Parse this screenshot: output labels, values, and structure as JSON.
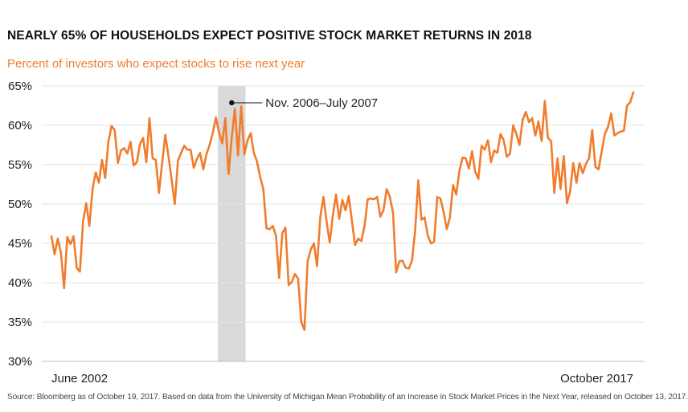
{
  "chart_data": {
    "type": "line",
    "title": "NEARLY 65% OF HOUSEHOLDS EXPECT POSITIVE STOCK MARKET RETURNS IN 2018",
    "subtitle": "Percent of investors who expect stocks to rise next year",
    "ylim": [
      30,
      65
    ],
    "yticks": [
      30,
      35,
      40,
      45,
      50,
      55,
      60,
      65
    ],
    "ytick_suffix": "%",
    "x_range": [
      "2002-06",
      "2017-10"
    ],
    "x_tick_labels": [
      {
        "x": "2002-06",
        "label": "June 2002"
      },
      {
        "x": "2017-10",
        "label": "October 2017"
      }
    ],
    "grid": "horizontal",
    "line_color": "#f07c2c",
    "highlight_color": "#d9d9d9",
    "highlight": {
      "start": "2006-11",
      "end": "2007-07",
      "label": "Nov. 2006–July 2007"
    },
    "series": [
      {
        "values": [
          [
            "2002-06",
            45.9
          ],
          [
            "2002-07",
            43.6
          ],
          [
            "2002-08",
            45.6
          ],
          [
            "2002-09",
            43.8
          ],
          [
            "2002-10",
            39.3
          ],
          [
            "2002-11",
            45.8
          ],
          [
            "2002-12",
            44.9
          ],
          [
            "2003-01",
            45.9
          ],
          [
            "2003-02",
            41.9
          ],
          [
            "2003-03",
            41.4
          ],
          [
            "2003-04",
            47.8
          ],
          [
            "2003-05",
            50.1
          ],
          [
            "2003-06",
            47.2
          ],
          [
            "2003-07",
            51.9
          ],
          [
            "2003-08",
            54.0
          ],
          [
            "2003-09",
            52.7
          ],
          [
            "2003-10",
            55.6
          ],
          [
            "2003-11",
            53.3
          ],
          [
            "2003-12",
            57.9
          ],
          [
            "2004-01",
            59.9
          ],
          [
            "2004-02",
            59.4
          ],
          [
            "2004-03",
            55.2
          ],
          [
            "2004-04",
            56.8
          ],
          [
            "2004-05",
            57.1
          ],
          [
            "2004-06",
            56.4
          ],
          [
            "2004-07",
            57.9
          ],
          [
            "2004-08",
            54.9
          ],
          [
            "2004-09",
            55.3
          ],
          [
            "2004-10",
            57.6
          ],
          [
            "2004-11",
            58.4
          ],
          [
            "2004-12",
            55.3
          ],
          [
            "2005-01",
            60.9
          ],
          [
            "2005-02",
            55.8
          ],
          [
            "2005-03",
            55.6
          ],
          [
            "2005-04",
            51.4
          ],
          [
            "2005-05",
            55.2
          ],
          [
            "2005-06",
            58.8
          ],
          [
            "2005-07",
            56.1
          ],
          [
            "2005-08",
            53.1
          ],
          [
            "2005-09",
            50.0
          ],
          [
            "2005-10",
            55.5
          ],
          [
            "2005-11",
            56.5
          ],
          [
            "2005-12",
            57.4
          ],
          [
            "2006-01",
            56.9
          ],
          [
            "2006-02",
            56.9
          ],
          [
            "2006-03",
            54.6
          ],
          [
            "2006-04",
            55.7
          ],
          [
            "2006-05",
            56.5
          ],
          [
            "2006-06",
            54.4
          ],
          [
            "2006-07",
            56.3
          ],
          [
            "2006-08",
            57.5
          ],
          [
            "2006-09",
            59.0
          ],
          [
            "2006-10",
            61.0
          ],
          [
            "2006-11",
            59.1
          ],
          [
            "2006-12",
            57.7
          ],
          [
            "2007-01",
            60.9
          ],
          [
            "2007-02",
            53.8
          ],
          [
            "2007-03",
            58.4
          ],
          [
            "2007-04",
            62.1
          ],
          [
            "2007-05",
            56.2
          ],
          [
            "2007-06",
            62.4
          ],
          [
            "2007-07",
            56.3
          ],
          [
            "2007-08",
            58.1
          ],
          [
            "2007-09",
            59.0
          ],
          [
            "2007-10",
            56.5
          ],
          [
            "2007-11",
            55.4
          ],
          [
            "2007-12",
            53.4
          ],
          [
            "2008-01",
            51.9
          ],
          [
            "2008-02",
            46.9
          ],
          [
            "2008-03",
            46.8
          ],
          [
            "2008-04",
            47.2
          ],
          [
            "2008-05",
            46.0
          ],
          [
            "2008-06",
            40.6
          ],
          [
            "2008-07",
            46.3
          ],
          [
            "2008-08",
            47.0
          ],
          [
            "2008-09",
            39.7
          ],
          [
            "2008-10",
            40.1
          ],
          [
            "2008-11",
            41.1
          ],
          [
            "2008-12",
            40.5
          ],
          [
            "2009-01",
            35.0
          ],
          [
            "2009-02",
            34.0
          ],
          [
            "2009-03",
            42.7
          ],
          [
            "2009-04",
            44.2
          ],
          [
            "2009-05",
            45.0
          ],
          [
            "2009-06",
            42.1
          ],
          [
            "2009-07",
            48.3
          ],
          [
            "2009-08",
            50.9
          ],
          [
            "2009-09",
            47.8
          ],
          [
            "2009-10",
            45.1
          ],
          [
            "2009-11",
            48.6
          ],
          [
            "2009-12",
            51.2
          ],
          [
            "2010-01",
            48.1
          ],
          [
            "2010-02",
            50.5
          ],
          [
            "2010-03",
            49.2
          ],
          [
            "2010-04",
            51.0
          ],
          [
            "2010-05",
            47.9
          ],
          [
            "2010-06",
            44.8
          ],
          [
            "2010-07",
            45.6
          ],
          [
            "2010-08",
            45.3
          ],
          [
            "2010-09",
            47.2
          ],
          [
            "2010-10",
            50.6
          ],
          [
            "2010-11",
            50.7
          ],
          [
            "2010-12",
            50.6
          ],
          [
            "2011-01",
            50.9
          ],
          [
            "2011-02",
            48.4
          ],
          [
            "2011-03",
            49.2
          ],
          [
            "2011-04",
            51.9
          ],
          [
            "2011-05",
            50.9
          ],
          [
            "2011-06",
            48.9
          ],
          [
            "2011-07",
            41.3
          ],
          [
            "2011-08",
            42.7
          ],
          [
            "2011-09",
            42.8
          ],
          [
            "2011-10",
            41.9
          ],
          [
            "2011-11",
            41.8
          ],
          [
            "2011-12",
            42.8
          ],
          [
            "2012-01",
            46.6
          ],
          [
            "2012-02",
            53.0
          ],
          [
            "2012-03",
            48.0
          ],
          [
            "2012-04",
            48.3
          ],
          [
            "2012-05",
            46.0
          ],
          [
            "2012-06",
            45.0
          ],
          [
            "2012-07",
            45.2
          ],
          [
            "2012-08",
            50.9
          ],
          [
            "2012-09",
            50.7
          ],
          [
            "2012-10",
            49.0
          ],
          [
            "2012-11",
            46.8
          ],
          [
            "2012-12",
            48.3
          ],
          [
            "2013-01",
            52.4
          ],
          [
            "2013-02",
            51.2
          ],
          [
            "2013-03",
            54.2
          ],
          [
            "2013-04",
            55.9
          ],
          [
            "2013-05",
            55.8
          ],
          [
            "2013-06",
            54.5
          ],
          [
            "2013-07",
            56.7
          ],
          [
            "2013-08",
            54.1
          ],
          [
            "2013-09",
            53.2
          ],
          [
            "2013-10",
            57.4
          ],
          [
            "2013-11",
            56.9
          ],
          [
            "2013-12",
            58.1
          ],
          [
            "2014-01",
            55.3
          ],
          [
            "2014-02",
            56.8
          ],
          [
            "2014-03",
            56.5
          ],
          [
            "2014-04",
            58.9
          ],
          [
            "2014-05",
            58.1
          ],
          [
            "2014-06",
            56.0
          ],
          [
            "2014-07",
            56.4
          ],
          [
            "2014-08",
            60.0
          ],
          [
            "2014-09",
            58.9
          ],
          [
            "2014-10",
            57.5
          ],
          [
            "2014-11",
            60.7
          ],
          [
            "2014-12",
            61.7
          ],
          [
            "2015-01",
            60.4
          ],
          [
            "2015-02",
            60.9
          ],
          [
            "2015-03",
            58.7
          ],
          [
            "2015-04",
            60.5
          ],
          [
            "2015-05",
            58.0
          ],
          [
            "2015-06",
            63.1
          ],
          [
            "2015-07",
            58.4
          ],
          [
            "2015-08",
            58.0
          ],
          [
            "2015-09",
            51.4
          ],
          [
            "2015-10",
            55.8
          ],
          [
            "2015-11",
            51.9
          ],
          [
            "2015-12",
            56.1
          ],
          [
            "2016-01",
            50.1
          ],
          [
            "2016-02",
            51.6
          ],
          [
            "2016-03",
            55.2
          ],
          [
            "2016-04",
            52.7
          ],
          [
            "2016-05",
            55.2
          ],
          [
            "2016-06",
            53.9
          ],
          [
            "2016-07",
            55.1
          ],
          [
            "2016-08",
            55.8
          ],
          [
            "2016-09",
            59.4
          ],
          [
            "2016-10",
            54.7
          ],
          [
            "2016-11",
            54.4
          ],
          [
            "2016-12",
            56.7
          ],
          [
            "2017-01",
            58.9
          ],
          [
            "2017-02",
            59.8
          ],
          [
            "2017-03",
            61.5
          ],
          [
            "2017-04",
            58.7
          ],
          [
            "2017-05",
            59.0
          ],
          [
            "2017-06",
            59.2
          ],
          [
            "2017-07",
            59.3
          ],
          [
            "2017-08",
            62.5
          ],
          [
            "2017-09",
            62.9
          ],
          [
            "2017-10",
            64.2
          ]
        ]
      }
    ]
  },
  "source": "Source: Bloomberg as of October 19, 2017. Based on data from the University of Michigan Mean Probability of an Increase in Stock Market Prices in the Next Year, released on October 13, 2017."
}
